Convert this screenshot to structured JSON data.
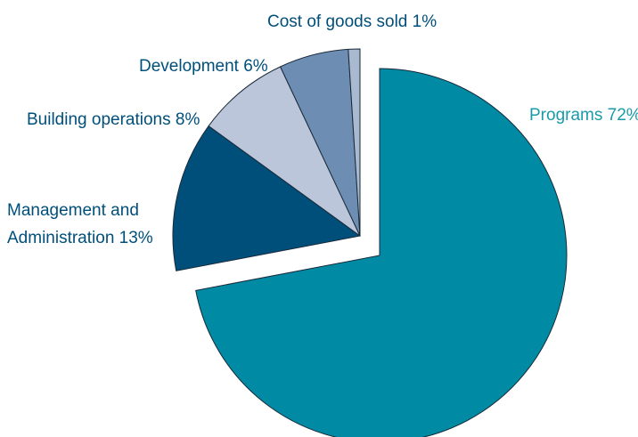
{
  "chart_data": {
    "type": "pie",
    "title": "",
    "slices": [
      {
        "label": "Programs",
        "value": 72,
        "pct_text": "72%",
        "color": "#008aa3",
        "text_color": "#1a9aaa",
        "exploded": true
      },
      {
        "label": "Management and Administration",
        "value": 13,
        "pct_text": "13%",
        "color": "#004f7b",
        "text_color": "#004f7b",
        "exploded": false
      },
      {
        "label": "Building operations",
        "value": 8,
        "pct_text": "8%",
        "color": "#bcc6da",
        "text_color": "#004f7b",
        "exploded": false
      },
      {
        "label": "Development",
        "value": 6,
        "pct_text": "6%",
        "color": "#6d8eb2",
        "text_color": "#004f7b",
        "exploded": false
      },
      {
        "label": "Cost of goods sold",
        "value": 1,
        "pct_text": "1%",
        "color": "#a9b9d0",
        "text_color": "#004f7b",
        "exploded": false
      }
    ],
    "label_lines": [
      "Programs 72%",
      "Management and",
      "Administration 13%",
      "Building operations 8%",
      "Development 6%",
      "Cost of goods sold 1%"
    ]
  }
}
